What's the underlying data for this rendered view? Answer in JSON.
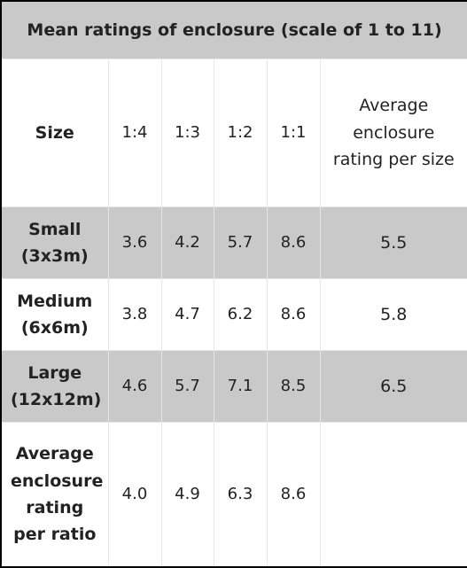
{
  "table": {
    "title": "Mean ratings of enclosure (scale of 1 to 11)",
    "header": [
      "Size",
      "1:4",
      "1:3",
      "1:2",
      "1:1",
      "Average enclosure rating per size"
    ],
    "rows": [
      [
        "Small (3x3m)",
        "3.6",
        "4.2",
        "5.7",
        "8.6",
        "5.5"
      ],
      [
        "Medium (6x6m)",
        "3.8",
        "4.7",
        "6.2",
        "8.6",
        "5.8"
      ],
      [
        "Large (12x12m)",
        "4.6",
        "5.7",
        "7.1",
        "8.5",
        "6.5"
      ],
      [
        "Average enclosure rating per ratio",
        "4.0",
        "4.9",
        "6.3",
        "8.6"
      ]
    ]
  }
}
